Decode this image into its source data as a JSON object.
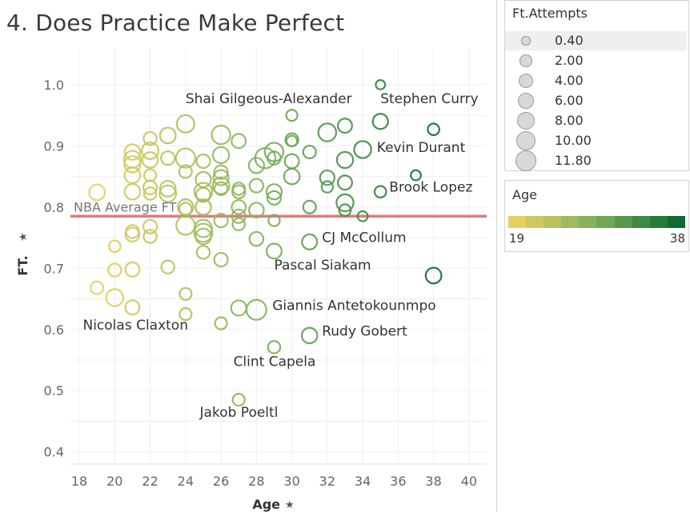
{
  "title": "4. Does Practice Make Perfect",
  "colors": {
    "reference_line": "#e07b7b",
    "age_min": "#e7cf5f",
    "age_max": "#0f6a30",
    "legend_circle_fill": "#d8d8d8",
    "legend_circle_stroke": "#9a9a9a"
  },
  "chart_data": {
    "type": "scatter",
    "xlabel": "Age",
    "ylabel": "FT.",
    "xlim": [
      17.5,
      41
    ],
    "ylim": [
      0.38,
      1.06
    ],
    "x_ticks": [
      18,
      20,
      22,
      24,
      26,
      28,
      30,
      32,
      34,
      36,
      38,
      40
    ],
    "y_ticks": [
      0.4,
      0.5,
      0.6,
      0.7,
      0.8,
      0.9,
      1.0
    ],
    "grid": true,
    "reference_line": {
      "label": "NBA Average FT",
      "y": 0.785
    },
    "size_encoding": "Ft.Attempts",
    "color_encoding": "Age",
    "points": [
      {
        "x": 35,
        "y": 1.0,
        "s": 0.5
      },
      {
        "x": 30,
        "y": 0.95,
        "s": 1.3
      },
      {
        "x": 35,
        "y": 0.94,
        "s": 4.5
      },
      {
        "x": 33,
        "y": 0.933,
        "s": 3.5
      },
      {
        "x": 38,
        "y": 0.927,
        "s": 1.5
      },
      {
        "x": 32,
        "y": 0.922,
        "s": 7.5
      },
      {
        "x": 34,
        "y": 0.894,
        "s": 6.5
      },
      {
        "x": 31,
        "y": 0.89,
        "s": 2.3
      },
      {
        "x": 30,
        "y": 0.91,
        "s": 2.5
      },
      {
        "x": 30,
        "y": 0.908,
        "s": 1.0
      },
      {
        "x": 29,
        "y": 0.89,
        "s": 8.5
      },
      {
        "x": 28.5,
        "y": 0.88,
        "s": 11.0
      },
      {
        "x": 29,
        "y": 0.88,
        "s": 2.5
      },
      {
        "x": 30,
        "y": 0.875,
        "s": 3.5
      },
      {
        "x": 33,
        "y": 0.877,
        "s": 5.5
      },
      {
        "x": 28,
        "y": 0.868,
        "s": 4.5
      },
      {
        "x": 32,
        "y": 0.848,
        "s": 3.8
      },
      {
        "x": 30,
        "y": 0.85,
        "s": 4.8
      },
      {
        "x": 33,
        "y": 0.84,
        "s": 3.5
      },
      {
        "x": 32,
        "y": 0.833,
        "s": 1.4
      },
      {
        "x": 37,
        "y": 0.852,
        "s": 0.8
      },
      {
        "x": 35,
        "y": 0.825,
        "s": 1.5
      },
      {
        "x": 29,
        "y": 0.825,
        "s": 4.5
      },
      {
        "x": 28,
        "y": 0.835,
        "s": 3.0
      },
      {
        "x": 29,
        "y": 0.815,
        "s": 3.0
      },
      {
        "x": 33,
        "y": 0.807,
        "s": 6.5
      },
      {
        "x": 33,
        "y": 0.795,
        "s": 1.6
      },
      {
        "x": 31,
        "y": 0.8,
        "s": 2.3
      },
      {
        "x": 34,
        "y": 0.785,
        "s": 0.8
      },
      {
        "x": 29,
        "y": 0.778,
        "s": 1.4
      },
      {
        "x": 28,
        "y": 0.795,
        "s": 4.0
      },
      {
        "x": 27,
        "y": 0.83,
        "s": 2.0
      },
      {
        "x": 27,
        "y": 0.825,
        "s": 2.5
      },
      {
        "x": 27,
        "y": 0.8,
        "s": 3.3
      },
      {
        "x": 27,
        "y": 0.785,
        "s": 3.0
      },
      {
        "x": 27,
        "y": 0.772,
        "s": 2.0
      },
      {
        "x": 31,
        "y": 0.743,
        "s": 4.3
      },
      {
        "x": 28,
        "y": 0.748,
        "s": 3.2
      },
      {
        "x": 29,
        "y": 0.728,
        "s": 4.3
      },
      {
        "x": 38,
        "y": 0.688,
        "s": 5.0
      },
      {
        "x": 28,
        "y": 0.632,
        "s": 10.5
      },
      {
        "x": 27,
        "y": 0.635,
        "s": 4.5
      },
      {
        "x": 31,
        "y": 0.59,
        "s": 4.8
      },
      {
        "x": 29,
        "y": 0.571,
        "s": 2.0
      },
      {
        "x": 26,
        "y": 0.61,
        "s": 1.8
      },
      {
        "x": 27,
        "y": 0.485,
        "s": 1.8
      },
      {
        "x": 26,
        "y": 0.918,
        "s": 8.5
      },
      {
        "x": 27,
        "y": 0.908,
        "s": 3.5
      },
      {
        "x": 26,
        "y": 0.885,
        "s": 5.5
      },
      {
        "x": 26,
        "y": 0.857,
        "s": 3.0
      },
      {
        "x": 26,
        "y": 0.848,
        "s": 4.5
      },
      {
        "x": 26,
        "y": 0.835,
        "s": 6.0
      },
      {
        "x": 26,
        "y": 0.83,
        "s": 2.5
      },
      {
        "x": 25,
        "y": 0.875,
        "s": 3.0
      },
      {
        "x": 25,
        "y": 0.845,
        "s": 4.5
      },
      {
        "x": 25,
        "y": 0.825,
        "s": 7.5
      },
      {
        "x": 25,
        "y": 0.82,
        "s": 3.5
      },
      {
        "x": 25,
        "y": 0.8,
        "s": 4.8
      },
      {
        "x": 25,
        "y": 0.765,
        "s": 7.0
      },
      {
        "x": 25,
        "y": 0.758,
        "s": 8.0
      },
      {
        "x": 25,
        "y": 0.752,
        "s": 5.0
      },
      {
        "x": 25,
        "y": 0.726,
        "s": 2.5
      },
      {
        "x": 26,
        "y": 0.714,
        "s": 3.0
      },
      {
        "x": 26,
        "y": 0.778,
        "s": 3.0
      },
      {
        "x": 24,
        "y": 0.936,
        "s": 7.0
      },
      {
        "x": 24,
        "y": 0.88,
        "s": 9.5
      },
      {
        "x": 24,
        "y": 0.858,
        "s": 2.3
      },
      {
        "x": 24,
        "y": 0.8,
        "s": 4.8
      },
      {
        "x": 24,
        "y": 0.77,
        "s": 8.5
      },
      {
        "x": 24,
        "y": 0.797,
        "s": 2.0
      },
      {
        "x": 24,
        "y": 0.658,
        "s": 1.8
      },
      {
        "x": 24,
        "y": 0.625,
        "s": 1.8
      },
      {
        "x": 23,
        "y": 0.917,
        "s": 5.0
      },
      {
        "x": 23,
        "y": 0.88,
        "s": 3.0
      },
      {
        "x": 23,
        "y": 0.83,
        "s": 5.0
      },
      {
        "x": 23,
        "y": 0.822,
        "s": 5.8
      },
      {
        "x": 23,
        "y": 0.702,
        "s": 2.5
      },
      {
        "x": 22,
        "y": 0.912,
        "s": 2.5
      },
      {
        "x": 22,
        "y": 0.892,
        "s": 6.0
      },
      {
        "x": 22,
        "y": 0.877,
        "s": 4.8
      },
      {
        "x": 22,
        "y": 0.852,
        "s": 1.8
      },
      {
        "x": 22,
        "y": 0.832,
        "s": 3.0
      },
      {
        "x": 22,
        "y": 0.822,
        "s": 2.0
      },
      {
        "x": 22,
        "y": 0.768,
        "s": 3.0
      },
      {
        "x": 22,
        "y": 0.752,
        "s": 2.5
      },
      {
        "x": 21,
        "y": 0.89,
        "s": 4.8
      },
      {
        "x": 21,
        "y": 0.878,
        "s": 6.5
      },
      {
        "x": 21,
        "y": 0.87,
        "s": 5.5
      },
      {
        "x": 21,
        "y": 0.852,
        "s": 5.0
      },
      {
        "x": 21,
        "y": 0.825,
        "s": 4.8
      },
      {
        "x": 21,
        "y": 0.76,
        "s": 2.5
      },
      {
        "x": 21,
        "y": 0.755,
        "s": 3.3
      },
      {
        "x": 21,
        "y": 0.698,
        "s": 3.5
      },
      {
        "x": 21,
        "y": 0.636,
        "s": 3.5
      },
      {
        "x": 20,
        "y": 0.736,
        "s": 1.5
      },
      {
        "x": 20,
        "y": 0.697,
        "s": 2.5
      },
      {
        "x": 20,
        "y": 0.652,
        "s": 6.5
      },
      {
        "x": 19,
        "y": 0.824,
        "s": 5.0
      },
      {
        "x": 19,
        "y": 0.668,
        "s": 2.3
      }
    ],
    "annotations": [
      {
        "text": "Shai Gilgeous-Alexander",
        "x": 24,
        "y": 0.97
      },
      {
        "text": "Stephen Curry",
        "x": 35,
        "y": 0.97
      },
      {
        "text": "Kevin Durant",
        "x": 34.8,
        "y": 0.89
      },
      {
        "text": "Brook Lopez",
        "x": 35.5,
        "y": 0.825
      },
      {
        "text": "CJ McCollum",
        "x": 31.7,
        "y": 0.743
      },
      {
        "text": "Pascal Siakam",
        "x": 29,
        "y": 0.698
      },
      {
        "text": "Giannis Antetokounmpo",
        "x": 28.9,
        "y": 0.632
      },
      {
        "text": "Nicolas Claxton",
        "x": 18.2,
        "y": 0.6
      },
      {
        "text": "Rudy Gobert",
        "x": 31.7,
        "y": 0.59
      },
      {
        "text": "Clint Capela",
        "x": 26.7,
        "y": 0.54
      },
      {
        "text": "Jakob Poeltl",
        "x": 24.8,
        "y": 0.457
      }
    ]
  },
  "size_legend": {
    "title": "Ft.Attempts",
    "items": [
      {
        "label": "0.40",
        "value": 0.4
      },
      {
        "label": "2.00",
        "value": 2.0
      },
      {
        "label": "4.00",
        "value": 4.0
      },
      {
        "label": "6.00",
        "value": 6.0
      },
      {
        "label": "8.00",
        "value": 8.0
      },
      {
        "label": "10.00",
        "value": 10.0
      },
      {
        "label": "11.80",
        "value": 11.8
      }
    ]
  },
  "color_legend": {
    "title": "Age",
    "min_label": "19",
    "max_label": "38",
    "min": 19,
    "max": 38,
    "steps": 10
  }
}
